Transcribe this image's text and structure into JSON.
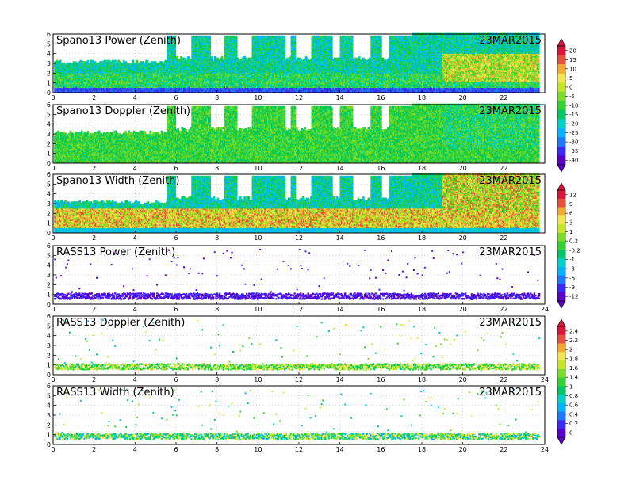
{
  "chart_data": [
    {
      "type": "heatmap",
      "title": "Spano13 Power (Zenith)",
      "date": "23MAR2015",
      "x_ticks": [
        "0",
        "2",
        "4",
        "6",
        "8",
        "10",
        "12",
        "14",
        "16",
        "18",
        "20",
        "22"
      ],
      "y_ticks": [
        "0",
        "1",
        "2",
        "3",
        "4",
        "5",
        "6"
      ],
      "xlim": [
        0,
        24
      ],
      "ylim": [
        0,
        6
      ],
      "colorbar_ticks": [
        "20",
        "15",
        "10",
        "5",
        "0",
        "-5",
        "-10",
        "-15",
        "-20",
        "-25",
        "-30",
        "-35",
        "-40"
      ],
      "field": "power"
    },
    {
      "type": "heatmap",
      "title": "Spano13 Doppler (Zenith)",
      "date": "23MAR2015",
      "x_ticks": [
        "0",
        "2",
        "4",
        "6",
        "8",
        "10",
        "12",
        "14",
        "16",
        "18",
        "20",
        "22"
      ],
      "y_ticks": [
        "0",
        "1",
        "2",
        "3",
        "4",
        "5",
        "6"
      ],
      "xlim": [
        0,
        24
      ],
      "ylim": [
        0,
        6
      ],
      "field": "doppler"
    },
    {
      "type": "heatmap",
      "title": "Spano13 Width (Zenith)",
      "date": "23MAR2015",
      "x_ticks": [
        "0",
        "2",
        "4",
        "6",
        "8",
        "10",
        "12",
        "14",
        "16",
        "18",
        "20",
        "22"
      ],
      "y_ticks": [
        "0",
        "1",
        "2",
        "3",
        "4",
        "5",
        "6"
      ],
      "xlim": [
        0,
        24
      ],
      "ylim": [
        0,
        6
      ],
      "colorbar_ticks": [
        "12",
        "9",
        "6",
        "3",
        "1",
        "0.2",
        "-0.2",
        "-1",
        "-3",
        "-6",
        "-9",
        "-12"
      ],
      "field": "width"
    },
    {
      "type": "heatmap",
      "title": "RASS13 Power (Zenith)",
      "date": "23MAR2015",
      "x_ticks": [
        "0",
        "2",
        "4",
        "6",
        "8",
        "10",
        "12",
        "14",
        "16",
        "18",
        "20",
        "22",
        "24"
      ],
      "y_ticks": [
        "0",
        "1",
        "2",
        "3",
        "4",
        "5",
        "6"
      ],
      "xlim": [
        0,
        24
      ],
      "ylim": [
        0,
        6
      ],
      "field": "rass_power"
    },
    {
      "type": "heatmap",
      "title": "RASS13 Doppler (Zenith)",
      "date": "23MAR2015",
      "x_ticks": [
        "0",
        "2",
        "4",
        "6",
        "8",
        "10",
        "12",
        "14",
        "16",
        "18",
        "20",
        "22",
        "24"
      ],
      "y_ticks": [
        "0",
        "1",
        "2",
        "3",
        "4",
        "5",
        "6"
      ],
      "xlim": [
        0,
        24
      ],
      "ylim": [
        0,
        6
      ],
      "colorbar_ticks": [
        "2.4",
        "2.2",
        "2",
        "1.8",
        "1.6",
        "1.4",
        "1",
        "0.8",
        "0.6",
        "0.4",
        "0.2",
        "0"
      ],
      "field": "rass_doppler"
    },
    {
      "type": "heatmap",
      "title": "RASS13 Width (Zenith)",
      "date": "23MAR2015",
      "x_ticks": [
        "0",
        "2",
        "4",
        "6",
        "8",
        "10",
        "12",
        "14",
        "16",
        "18",
        "20",
        "22",
        "24"
      ],
      "y_ticks": [
        "0",
        "1",
        "2",
        "3",
        "4",
        "5",
        "6"
      ],
      "xlim": [
        0,
        24
      ],
      "ylim": [
        0,
        6
      ],
      "field": "rass_width"
    }
  ],
  "colors": {
    "power_scale": [
      "#5a00c8",
      "#3c28ff",
      "#1e78ff",
      "#00b4ff",
      "#00d2c8",
      "#00c864",
      "#32d232",
      "#78dc28",
      "#c8e628",
      "#f0e650",
      "#f0aa32",
      "#e6503c",
      "#dc143c"
    ],
    "width_scale": [
      "#5a00c8",
      "#3c28ff",
      "#1e78ff",
      "#00b4ff",
      "#00d2c8",
      "#00c864",
      "#32d232",
      "#78dc28",
      "#c8e628",
      "#f0e650",
      "#f0aa32",
      "#e6503c",
      "#dc143c"
    ],
    "rass_scale": [
      "#5a00c8",
      "#3c28ff",
      "#1e78ff",
      "#00b4ff",
      "#00d2c8",
      "#00c864",
      "#32d232",
      "#78dc28",
      "#c8e628",
      "#f0e650",
      "#f0aa32",
      "#e6503c",
      "#dc143c"
    ]
  }
}
